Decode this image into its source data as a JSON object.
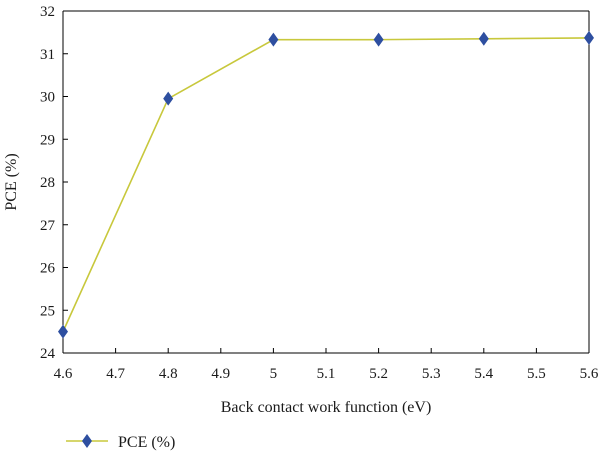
{
  "chart_data": {
    "type": "line",
    "title": "",
    "xlabel": "Back contact work function (eV)",
    "ylabel": "PCE (%)",
    "xlim": [
      4.6,
      5.6
    ],
    "ylim": [
      24,
      32
    ],
    "x_ticks": [
      "4.6",
      "4.7",
      "4.8",
      "4.9",
      "5",
      "5.1",
      "5.2",
      "5.3",
      "5.4",
      "5.5",
      "5.6"
    ],
    "y_ticks": [
      "24",
      "25",
      "26",
      "27",
      "28",
      "29",
      "30",
      "31",
      "32"
    ],
    "grid": false,
    "legend_position": "bottom-left",
    "series": [
      {
        "name": "PCE (%)",
        "x": [
          4.6,
          4.8,
          5.0,
          5.2,
          5.4,
          5.6
        ],
        "values": [
          24.5,
          29.95,
          31.33,
          31.33,
          31.35,
          31.37
        ],
        "line_color": "#c8c83c",
        "marker_color": "#2e4fa0",
        "marker": "diamond"
      }
    ]
  }
}
